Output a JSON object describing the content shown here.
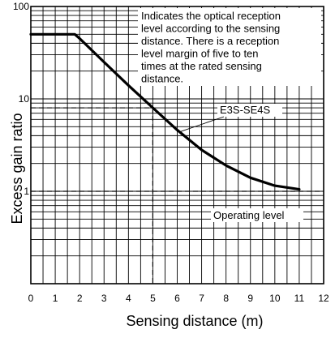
{
  "chart_data": {
    "type": "line",
    "xlabel": "Sensing distance (m)",
    "ylabel": "Excess gain ratio",
    "xlim": [
      0,
      12
    ],
    "ylim": [
      0.1,
      100
    ],
    "y_scale": "log",
    "grid": true,
    "x_ticks": [
      0,
      1,
      2,
      3,
      4,
      5,
      6,
      7,
      8,
      9,
      10,
      11,
      12
    ],
    "y_ticks": [
      {
        "value": 100,
        "label": "100"
      },
      {
        "value": 10,
        "label": "10"
      },
      {
        "value": 1,
        "label": "1"
      }
    ],
    "series": [
      {
        "x": [
          0,
          1.8,
          2.0,
          3.0,
          4.0,
          5.0,
          6.0,
          7.0,
          8.0,
          9.0,
          10.0,
          11.0
        ],
        "y": [
          50,
          50,
          45,
          25,
          14,
          8,
          4.6,
          2.8,
          1.9,
          1.4,
          1.15,
          1.05
        ]
      }
    ],
    "reference_lines": [
      {
        "axis": "x",
        "value": 5
      },
      {
        "axis": "y",
        "value": 8
      },
      {
        "axis": "y",
        "value": 1
      }
    ],
    "annotations": {
      "note_lines": [
        "Indicates the optical reception",
        "level according to the sensing",
        "distance. There is a reception",
        "level margin of five to ten",
        "times at the rated sensing",
        "distance."
      ],
      "series_label": "E3S-SE4S",
      "operating_label": "Operating level"
    }
  }
}
